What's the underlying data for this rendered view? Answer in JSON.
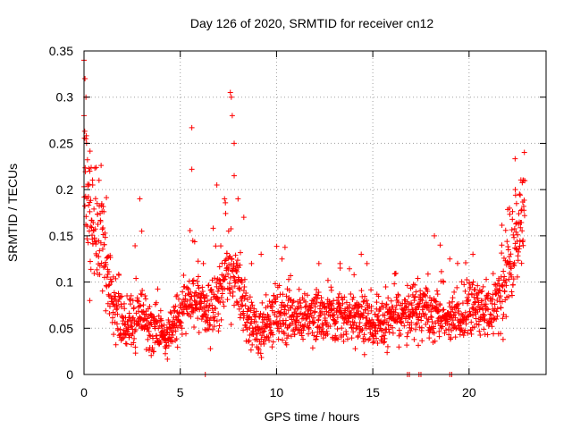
{
  "chart_data": {
    "type": "scatter",
    "title": "Day 126 of 2020, SRMTID for receiver cn12",
    "xlabel": "GPS time / hours",
    "ylabel": "SRMTID / TECUs",
    "xlim": [
      0,
      24
    ],
    "ylim": [
      0,
      0.35
    ],
    "xticks": [
      0,
      5,
      10,
      15,
      20
    ],
    "yticks": [
      0,
      0.05,
      0.1,
      0.15,
      0.2,
      0.25,
      0.3,
      0.35
    ],
    "ytick_labels": [
      "0",
      "0.05",
      "0.1",
      "0.15",
      "0.2",
      "0.25",
      "0.3",
      "0.35"
    ],
    "grid": true,
    "marker": "+",
    "color": "#ff0000",
    "series": [
      {
        "name": "cn12",
        "trend": [
          [
            0.0,
            0.2
          ],
          [
            0.4,
            0.16
          ],
          [
            1.0,
            0.14
          ],
          [
            1.3,
            0.1
          ],
          [
            1.6,
            0.065
          ],
          [
            2.2,
            0.05
          ],
          [
            3.0,
            0.065
          ],
          [
            3.6,
            0.05
          ],
          [
            4.3,
            0.04
          ],
          [
            5.0,
            0.065
          ],
          [
            5.6,
            0.09
          ],
          [
            6.2,
            0.07
          ],
          [
            7.0,
            0.08
          ],
          [
            7.6,
            0.12
          ],
          [
            8.2,
            0.08
          ],
          [
            8.6,
            0.055
          ],
          [
            9.3,
            0.045
          ],
          [
            10.0,
            0.07
          ],
          [
            11.0,
            0.06
          ],
          [
            12.0,
            0.065
          ],
          [
            13.0,
            0.06
          ],
          [
            14.0,
            0.065
          ],
          [
            15.0,
            0.055
          ],
          [
            16.0,
            0.06
          ],
          [
            17.0,
            0.07
          ],
          [
            18.0,
            0.065
          ],
          [
            19.0,
            0.06
          ],
          [
            20.0,
            0.075
          ],
          [
            21.0,
            0.07
          ],
          [
            21.8,
            0.09
          ],
          [
            22.3,
            0.13
          ],
          [
            22.9,
            0.18
          ]
        ],
        "highlights": [
          [
            0.0,
            0.34
          ],
          [
            0.05,
            0.32
          ],
          [
            0.1,
            0.3
          ],
          [
            0.0,
            0.28
          ],
          [
            0.1,
            0.255
          ],
          [
            0.3,
            0.22
          ],
          [
            0.45,
            0.205
          ],
          [
            0.3,
            0.08
          ],
          [
            2.9,
            0.19
          ],
          [
            3.0,
            0.155
          ],
          [
            5.6,
            0.267
          ],
          [
            5.6,
            0.222
          ],
          [
            6.2,
            0.12
          ],
          [
            6.9,
            0.205
          ],
          [
            7.3,
            0.19
          ],
          [
            7.6,
            0.305
          ],
          [
            7.65,
            0.3
          ],
          [
            7.7,
            0.28
          ],
          [
            7.8,
            0.25
          ],
          [
            7.8,
            0.215
          ],
          [
            8.0,
            0.19
          ],
          [
            8.3,
            0.17
          ],
          [
            8.7,
            0.12
          ],
          [
            9.2,
            0.13
          ],
          [
            12.2,
            0.12
          ],
          [
            13.3,
            0.12
          ],
          [
            14.4,
            0.13
          ],
          [
            14.7,
            0.12
          ],
          [
            18.2,
            0.15
          ],
          [
            18.5,
            0.14
          ],
          [
            19.0,
            0.125
          ],
          [
            20.2,
            0.13
          ],
          [
            21.7,
            0.14
          ],
          [
            22.1,
            0.18
          ],
          [
            22.4,
            0.2
          ],
          [
            22.8,
            0.21
          ]
        ],
        "zeros": [
          6.3,
          16.8,
          16.9,
          17.4,
          17.5,
          19.0,
          19.1
        ]
      }
    ]
  }
}
